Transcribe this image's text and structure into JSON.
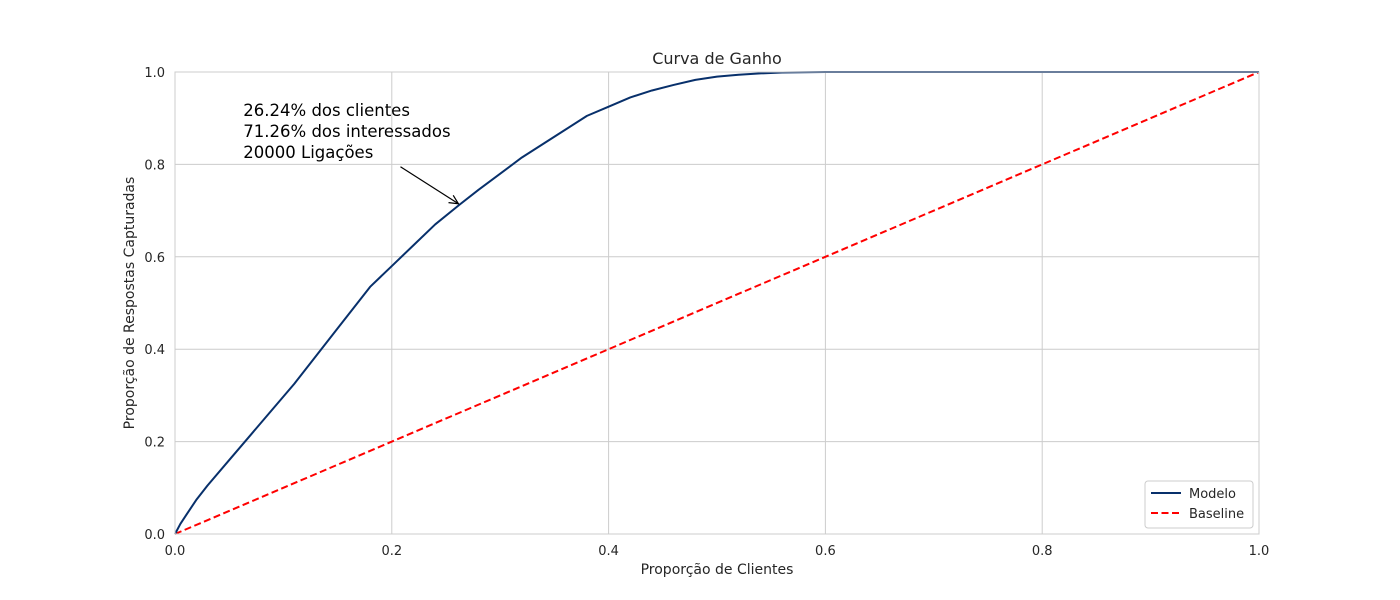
{
  "chart_data": {
    "type": "line",
    "title": "Curva de Ganho",
    "xlabel": "Proporção de Clientes",
    "ylabel": "Proporção de Respostas Capturadas",
    "xlim": [
      0.0,
      1.0
    ],
    "ylim": [
      0.0,
      1.0
    ],
    "xticks": [
      "0.0",
      "0.2",
      "0.4",
      "0.6",
      "0.8",
      "1.0"
    ],
    "yticks": [
      "0.0",
      "0.2",
      "0.4",
      "0.6",
      "0.8",
      "1.0"
    ],
    "grid": true,
    "legend_position": "lower-right",
    "series": [
      {
        "name": "Modelo",
        "color": "#08306b",
        "style": "solid",
        "x": [
          0.0,
          0.005,
          0.01,
          0.02,
          0.03,
          0.05,
          0.07,
          0.09,
          0.11,
          0.13,
          0.15,
          0.18,
          0.2,
          0.22,
          0.24,
          0.2624,
          0.28,
          0.3,
          0.32,
          0.34,
          0.36,
          0.38,
          0.4,
          0.42,
          0.44,
          0.46,
          0.48,
          0.5,
          0.52,
          0.54,
          0.56,
          0.6,
          0.7,
          0.8,
          0.9,
          1.0
        ],
        "y": [
          0.0,
          0.022,
          0.04,
          0.075,
          0.105,
          0.16,
          0.215,
          0.27,
          0.325,
          0.385,
          0.445,
          0.535,
          0.58,
          0.625,
          0.67,
          0.7126,
          0.745,
          0.78,
          0.815,
          0.845,
          0.875,
          0.905,
          0.925,
          0.945,
          0.96,
          0.972,
          0.983,
          0.99,
          0.994,
          0.997,
          0.999,
          1.0,
          1.0,
          1.0,
          1.0,
          1.0
        ]
      },
      {
        "name": "Baseline",
        "color": "#ff0000",
        "style": "dashed",
        "x": [
          0.0,
          1.0
        ],
        "y": [
          0.0,
          1.0
        ]
      }
    ],
    "annotation": {
      "lines": [
        "26.24% dos clientes",
        "71.26% dos interessados",
        "20000 Ligações"
      ],
      "point": [
        0.2624,
        0.7126
      ],
      "text_anchor": [
        0.063,
        0.905
      ],
      "arrow_tail": [
        0.208,
        0.795
      ]
    }
  }
}
